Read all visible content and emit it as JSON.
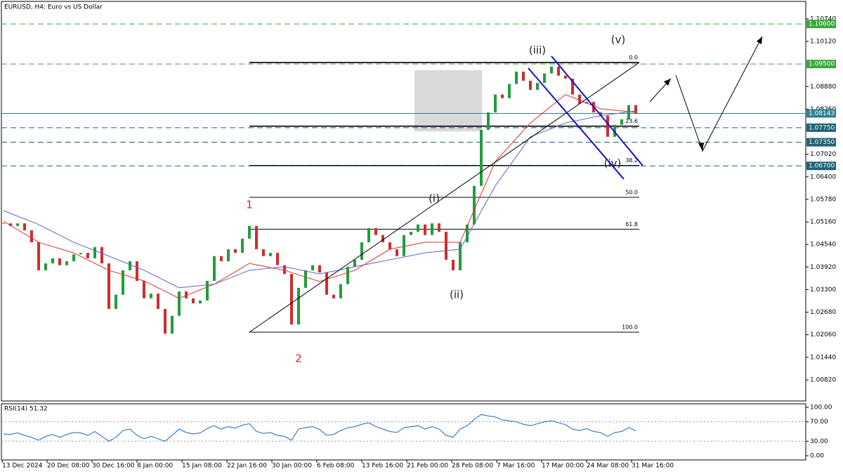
{
  "chart_data": {
    "type": "candlestick",
    "title": "EURUSD, H4:  Euro vs US Dollar",
    "ylim": [
      1.0024,
      1.1122
    ],
    "yticks": [
      {
        "value": 1.1074,
        "label": "1.10740"
      },
      {
        "value": 1.1012,
        "label": "1.10120"
      },
      {
        "value": 1.0888,
        "label": "1.08880"
      },
      {
        "value": 1.0826,
        "label": "1.08260"
      },
      {
        "value": 1.0702,
        "label": "1.07020"
      },
      {
        "value": 1.064,
        "label": "1.06400"
      },
      {
        "value": 1.0578,
        "label": "1.05780"
      },
      {
        "value": 1.0516,
        "label": "1.05160"
      },
      {
        "value": 1.0454,
        "label": "1.04540"
      },
      {
        "value": 1.0392,
        "label": "1.03920"
      },
      {
        "value": 1.033,
        "label": "1.03300"
      },
      {
        "value": 1.0268,
        "label": "1.02680"
      },
      {
        "value": 1.0206,
        "label": "1.02060"
      },
      {
        "value": 1.0144,
        "label": "1.01440"
      },
      {
        "value": 1.0082,
        "label": "1.00820"
      }
    ],
    "time_labels": [
      "13 Dec 2024",
      "20 Dec 08:00",
      "30 Dec 16:00",
      "8 Jan 00:00",
      "15 Jan 08:00",
      "22 Jan 16:00",
      "30 Jan 00:00",
      "6 Feb 08:00",
      "13 Feb 16:00",
      "21 Feb 00:00",
      "28 Feb 08:00",
      "7 Mar 16:00",
      "17 Mar 00:00",
      "24 Mar 08:00",
      "31 Mar 16:00"
    ],
    "up_color": "#1f9e3a",
    "down_color": "#d12c2c",
    "close": [
      1.0512,
      1.0505,
      1.0512,
      1.0493,
      1.046,
      1.0383,
      1.0402,
      1.0416,
      1.0397,
      1.0408,
      1.0427,
      1.0431,
      1.0416,
      1.0447,
      1.0402,
      1.0277,
      1.0316,
      1.0383,
      1.0408,
      1.0354,
      1.0306,
      1.0319,
      1.0277,
      1.0209,
      1.0258,
      1.0325,
      1.0306,
      1.0292,
      1.03,
      1.0354,
      1.0422,
      1.0408,
      1.0441,
      1.0431,
      1.047,
      1.0505,
      1.0441,
      1.0422,
      1.0431,
      1.0397,
      1.0373,
      1.0234,
      1.0335,
      1.0383,
      1.0397,
      1.0377,
      1.0316,
      1.0306,
      1.0345,
      1.0393,
      1.0412,
      1.046,
      1.0499,
      1.048,
      1.046,
      1.0441,
      1.0422,
      1.048,
      1.0489,
      1.0509,
      1.048,
      1.0512,
      1.0489,
      1.0412,
      1.0383,
      1.046,
      1.0509,
      1.0615,
      1.0769,
      1.0817,
      1.0866,
      1.0856,
      1.0895,
      1.0929,
      1.0904,
      1.0879,
      1.0898,
      1.0924,
      1.0943,
      1.0918,
      1.091,
      1.0866,
      1.0841,
      1.0846,
      1.0817,
      1.0808,
      1.075,
      1.0783,
      1.0798,
      1.0837,
      1.0814
    ],
    "moving_averages": [
      {
        "color": "#e0302a",
        "x": [
          0,
          5,
          10,
          15,
          20,
          25,
          30,
          35,
          40,
          45,
          50,
          55,
          60,
          65,
          70,
          75,
          80,
          85,
          90
        ],
        "values": [
          1.0518,
          1.046,
          1.0431,
          1.0383,
          1.0354,
          1.0306,
          1.0345,
          1.0402,
          1.0383,
          1.0352,
          1.0383,
          1.0441,
          1.046,
          1.046,
          1.0682,
          1.0788,
          1.0866,
          1.0827,
          1.0817
        ]
      },
      {
        "color": "#5b63c9",
        "x": [
          0,
          5,
          10,
          15,
          20,
          25,
          30,
          35,
          40,
          45,
          50,
          55,
          60,
          65,
          70,
          75,
          80,
          85,
          90
        ],
        "values": [
          1.0547,
          1.0509,
          1.046,
          1.0422,
          1.0383,
          1.0335,
          1.0345,
          1.0383,
          1.0393,
          1.0373,
          1.0393,
          1.0412,
          1.0431,
          1.0441,
          1.0615,
          1.075,
          1.0788,
          1.0808,
          1.0821
        ]
      }
    ],
    "levels": [
      {
        "value": 1.106,
        "label": "1.10600",
        "color": "#3aa83a",
        "style": "dash"
      },
      {
        "value": 1.095,
        "label": "1.09500",
        "color": "#3aa83a",
        "style": "dash"
      },
      {
        "value": 1.08143,
        "label": "1.08143",
        "color": "#2f7f8f",
        "style": "solid"
      },
      {
        "value": 1.0775,
        "label": "1.07750",
        "color": "#1f6275",
        "style": "dash"
      },
      {
        "value": 1.0735,
        "label": "1.07350",
        "color": "#1f6275",
        "style": "dash"
      },
      {
        "value": 1.067,
        "label": "1.06700",
        "color": "#1f6275",
        "style": "dash"
      }
    ],
    "fibonacci": {
      "high": 1.0954,
      "low": 1.0213,
      "levels": [
        {
          "value": 0,
          "label": "0.0"
        },
        {
          "value": 23.6,
          "label": "23.6"
        },
        {
          "value": 38.2,
          "label": "38.2"
        },
        {
          "value": 50,
          "label": "50.0"
        },
        {
          "value": 61.8,
          "label": "61.8"
        },
        {
          "value": 100,
          "label": "100.0"
        }
      ]
    },
    "annotations": [
      {
        "text": "1",
        "color": "#d12c2c"
      },
      {
        "text": "2",
        "color": "#d12c2c"
      },
      {
        "text": "(i)",
        "color": "#222222"
      },
      {
        "text": "(ii)",
        "color": "#222222"
      },
      {
        "text": "(iii)",
        "color": "#222222"
      },
      {
        "text": "(iv)",
        "color": "#222222"
      },
      {
        "text": "(v)",
        "color": "#222222"
      }
    ],
    "rsi": {
      "name": "RSI(14)",
      "color": "#1e64c8",
      "ylim": [
        -8.7,
        107.2
      ],
      "yticks": [
        {
          "value": 100,
          "label": "100.00"
        },
        {
          "value": 70,
          "label": "70.00"
        },
        {
          "value": 30,
          "label": "30.00"
        },
        {
          "value": 0,
          "label": "0.00"
        }
      ],
      "values": [
        45,
        44,
        47,
        42,
        38,
        32,
        40,
        44,
        38,
        44,
        48,
        47,
        42,
        50,
        40,
        30,
        38,
        52,
        55,
        42,
        35,
        40,
        35,
        30,
        42,
        55,
        48,
        45,
        47,
        56,
        62,
        55,
        60,
        57,
        63,
        66,
        50,
        46,
        48,
        42,
        40,
        32,
        55,
        58,
        60,
        54,
        42,
        44,
        52,
        58,
        60,
        65,
        68,
        60,
        55,
        50,
        48,
        58,
        60,
        62,
        55,
        60,
        55,
        42,
        38,
        55,
        62,
        75,
        85,
        82,
        80,
        74,
        72,
        70,
        65,
        62,
        66,
        70,
        72,
        68,
        64,
        55,
        52,
        56,
        50,
        48,
        40,
        48,
        50,
        58,
        51.32
      ]
    }
  }
}
